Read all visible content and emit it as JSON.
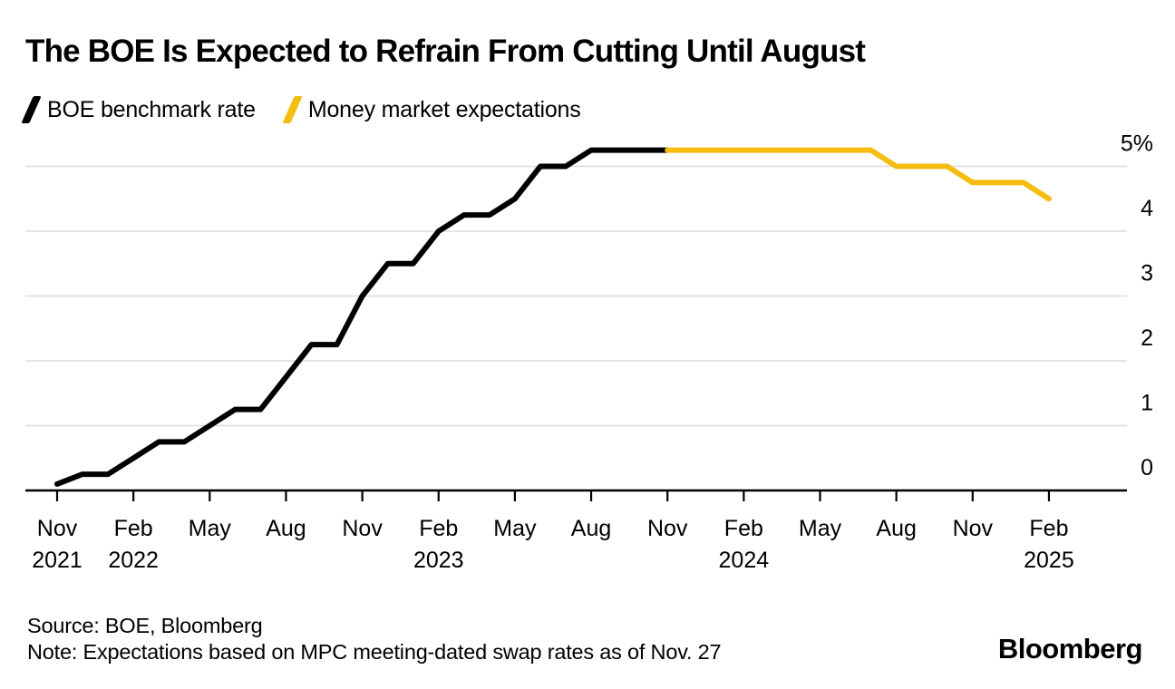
{
  "title": "The BOE Is Expected to Refrain From Cutting Until August",
  "legend": [
    {
      "label": "BOE benchmark rate",
      "color": "#000000"
    },
    {
      "label": "Money market expectations",
      "color": "#F5BD11"
    }
  ],
  "footer": {
    "source": "Source: BOE, Bloomberg",
    "note": "Note: Expectations based on MPC meeting-dated swap rates as of Nov. 27",
    "logo": "Bloomberg"
  },
  "colors": {
    "grid": "#DBDBDB",
    "axis": "#000000",
    "tick_text": "#000000",
    "accent_yellow": "#F5BD11",
    "accent_black": "#000000"
  },
  "chart_data": {
    "type": "line",
    "title": "The BOE Is Expected to Refrain From Cutting Until August",
    "xlabel": "",
    "ylabel": "",
    "x_unit": "months since Nov 2021",
    "ylim": [
      0,
      5.5
    ],
    "grid": true,
    "legend_position": "top-left",
    "yticks": [
      {
        "v": 0,
        "label": "0"
      },
      {
        "v": 1,
        "label": "1"
      },
      {
        "v": 2,
        "label": "2"
      },
      {
        "v": 3,
        "label": "3"
      },
      {
        "v": 4,
        "label": "4"
      },
      {
        "v": 5,
        "label": "5%"
      }
    ],
    "xticks": [
      {
        "m": 0,
        "label": "Nov",
        "year": "2021"
      },
      {
        "m": 3,
        "label": "Feb",
        "year": "2022"
      },
      {
        "m": 6,
        "label": "May"
      },
      {
        "m": 9,
        "label": "Aug"
      },
      {
        "m": 12,
        "label": "Nov"
      },
      {
        "m": 15,
        "label": "Feb",
        "year": "2023"
      },
      {
        "m": 18,
        "label": "May"
      },
      {
        "m": 21,
        "label": "Aug"
      },
      {
        "m": 24,
        "label": "Nov"
      },
      {
        "m": 27,
        "label": "Feb",
        "year": "2024"
      },
      {
        "m": 30,
        "label": "May"
      },
      {
        "m": 33,
        "label": "Aug"
      },
      {
        "m": 36,
        "label": "Nov"
      },
      {
        "m": 39,
        "label": "Feb",
        "year": "2025"
      }
    ],
    "series": [
      {
        "name": "BOE benchmark rate",
        "color": "#000000",
        "points": [
          [
            0,
            0.1
          ],
          [
            1,
            0.25
          ],
          [
            2,
            0.25
          ],
          [
            3,
            0.5
          ],
          [
            4,
            0.75
          ],
          [
            5,
            0.75
          ],
          [
            6,
            1.0
          ],
          [
            7,
            1.25
          ],
          [
            8,
            1.25
          ],
          [
            9,
            1.75
          ],
          [
            10,
            2.25
          ],
          [
            11,
            2.25
          ],
          [
            12,
            3.0
          ],
          [
            13,
            3.5
          ],
          [
            14,
            3.5
          ],
          [
            15,
            4.0
          ],
          [
            16,
            4.25
          ],
          [
            17,
            4.25
          ],
          [
            18,
            4.5
          ],
          [
            19,
            5.0
          ],
          [
            20,
            5.0
          ],
          [
            21,
            5.25
          ],
          [
            22,
            5.25
          ],
          [
            23,
            5.25
          ],
          [
            24,
            5.25
          ]
        ]
      },
      {
        "name": "Money market expectations",
        "color": "#F5BD11",
        "points": [
          [
            24,
            5.25
          ],
          [
            25,
            5.25
          ],
          [
            26,
            5.25
          ],
          [
            27,
            5.25
          ],
          [
            28,
            5.25
          ],
          [
            29,
            5.25
          ],
          [
            30,
            5.25
          ],
          [
            31,
            5.25
          ],
          [
            32,
            5.25
          ],
          [
            33,
            5.0
          ],
          [
            34,
            5.0
          ],
          [
            35,
            5.0
          ],
          [
            36,
            4.75
          ],
          [
            37,
            4.75
          ],
          [
            38,
            4.75
          ],
          [
            39,
            4.5
          ]
        ]
      }
    ]
  }
}
